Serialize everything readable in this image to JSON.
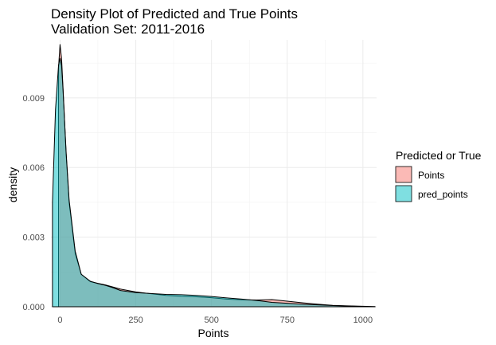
{
  "chart_data": {
    "type": "area",
    "title": "Density Plot of Predicted and True Points",
    "subtitle": "Validation Set: 2011-2016",
    "xlabel": "Points",
    "ylabel": "density",
    "xlim": [
      -30,
      1045
    ],
    "ylim": [
      0,
      0.0115
    ],
    "x_ticks": [
      0,
      250,
      500,
      750,
      1000
    ],
    "x_tick_labels": [
      "0",
      "250",
      "500",
      "750",
      "1000"
    ],
    "y_ticks": [
      0,
      0.003,
      0.006,
      0.009
    ],
    "y_tick_labels": [
      "0.000",
      "0.003",
      "0.006",
      "0.009"
    ],
    "grid": true,
    "legend": {
      "title": "Predicted or True",
      "position": "right"
    },
    "series": [
      {
        "name": "Points",
        "color": "#F8766D",
        "opacity": 0.5,
        "x": [
          -5,
          0,
          5,
          10,
          20,
          30,
          50,
          70,
          100,
          125,
          150,
          200,
          250,
          300,
          350,
          400,
          450,
          500,
          550,
          600,
          650,
          700,
          750,
          800,
          850,
          900,
          950,
          1000,
          1040
        ],
        "y": [
          0.0103,
          0.0113,
          0.0107,
          0.0094,
          0.0066,
          0.0045,
          0.0023,
          0.0014,
          0.00108,
          0.00101,
          0.00094,
          0.00076,
          0.00064,
          0.00056,
          0.00049,
          0.00045,
          0.00043,
          0.00039,
          0.00033,
          0.0003,
          0.00029,
          0.00031,
          0.00024,
          0.00017,
          0.00011,
          6e-05,
          4e-05,
          2e-05,
          1e-05
        ]
      },
      {
        "name": "pred_points",
        "color": "#00BFC4",
        "opacity": 0.5,
        "x": [
          -25,
          -15,
          -5,
          0,
          5,
          10,
          20,
          30,
          50,
          70,
          100,
          125,
          150,
          175,
          200,
          250,
          300,
          350,
          400,
          450,
          500,
          550,
          600,
          650,
          700,
          750,
          800,
          850,
          900,
          950,
          1000,
          1040
        ],
        "y": [
          0.0045,
          0.0085,
          0.0104,
          0.0107,
          0.0104,
          0.0093,
          0.0067,
          0.0046,
          0.0024,
          0.0014,
          0.0011,
          0.001,
          0.00092,
          0.00082,
          0.0007,
          0.00061,
          0.00057,
          0.00053,
          0.00052,
          0.00049,
          0.00044,
          0.00038,
          0.00033,
          0.00027,
          0.00019,
          0.00015,
          0.00011,
          8e-05,
          5e-05,
          3e-05,
          1e-05,
          0.0
        ]
      }
    ]
  }
}
